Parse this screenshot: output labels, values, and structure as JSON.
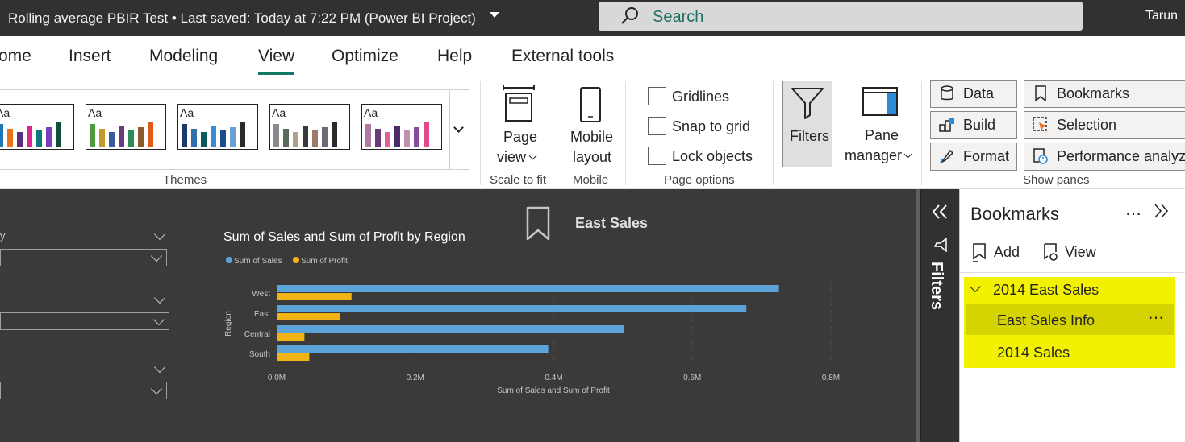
{
  "titlebar": {
    "title": "Rolling average PBIR Test • Last saved: Today at 7:22 PM (Power BI Project)",
    "search_placeholder": "Search",
    "user": "Tarun"
  },
  "tabs": [
    "ome",
    "Insert",
    "Modeling",
    "View",
    "Optimize",
    "Help",
    "External tools"
  ],
  "active_tab": "View",
  "ribbon": {
    "themes": {
      "label": "Themes",
      "thumb_text": "Aa",
      "palettes": [
        [
          "#1f77b4",
          "#e8731c",
          "#5e2a84",
          "#d7268d",
          "#0e7a78",
          "#7a3fbf",
          "#0b4f3c"
        ],
        [
          "#4e9a3d",
          "#c29a2b",
          "#3a5a9a",
          "#6b3a7a",
          "#2f8a5a",
          "#8a5a2a",
          "#e05a1c"
        ],
        [
          "#1a3a6a",
          "#2f6fb0",
          "#0d5a5a",
          "#3a8ad0",
          "#1d4e8a",
          "#6aa0d0",
          "#2a2a2a"
        ],
        [
          "#8a8a8a",
          "#5a6a5a",
          "#b0a090",
          "#3a3a3a",
          "#9a7a6a",
          "#6a6a7a",
          "#2a2a2a"
        ],
        [
          "#b07aa0",
          "#6a3a7a",
          "#e0609a",
          "#4a2a6a",
          "#c090b0",
          "#8a4a9a",
          "#e04a8a"
        ]
      ]
    },
    "page_view": {
      "label1": "Page",
      "label2": "view"
    },
    "scale_group_label": "Scale to fit",
    "mobile_layout": {
      "label1": "Mobile",
      "label2": "layout"
    },
    "mobile_group_label": "Mobile",
    "page_options": {
      "gridlines": "Gridlines",
      "snap_to_grid": "Snap to grid",
      "lock_objects": "Lock objects",
      "group_label": "Page options"
    },
    "filters_btn": "Filters",
    "pane_manager": {
      "label1": "Pane",
      "label2": "manager"
    },
    "show_panes": {
      "data": "Data",
      "build": "Build",
      "format": "Format",
      "bookmarks": "Bookmarks",
      "selection": "Selection",
      "performance": "Performance analyzer",
      "group_label": "Show panes"
    }
  },
  "canvas": {
    "slicer_label_fragment": "y",
    "bookmark_visual_label": "East Sales"
  },
  "chart_data": {
    "type": "bar",
    "orientation": "horizontal",
    "title": "Sum of Sales and Sum of Profit by Region",
    "categories": [
      "West",
      "East",
      "Central",
      "South"
    ],
    "series": [
      {
        "name": "Sum of Sales",
        "color": "#5ba3d9",
        "values": [
          0.725,
          0.678,
          0.501,
          0.392
        ]
      },
      {
        "name": "Sum of Profit",
        "color": "#f2b316",
        "values": [
          0.108,
          0.092,
          0.04,
          0.047
        ]
      }
    ],
    "xlabel": "Sum of Sales and Sum of Profit",
    "ylabel": "Region",
    "xticks": [
      "0.0M",
      "0.2M",
      "0.4M",
      "0.6M",
      "0.8M"
    ],
    "xlim": [
      0,
      0.8
    ],
    "legend": "top-left",
    "grid": true
  },
  "filters_pane": {
    "label": "Filters"
  },
  "bookmarks_pane": {
    "title": "Bookmarks",
    "add": "Add",
    "view": "View",
    "group": "2014 East Sales",
    "items": [
      "East Sales Info",
      "2014 Sales"
    ]
  }
}
